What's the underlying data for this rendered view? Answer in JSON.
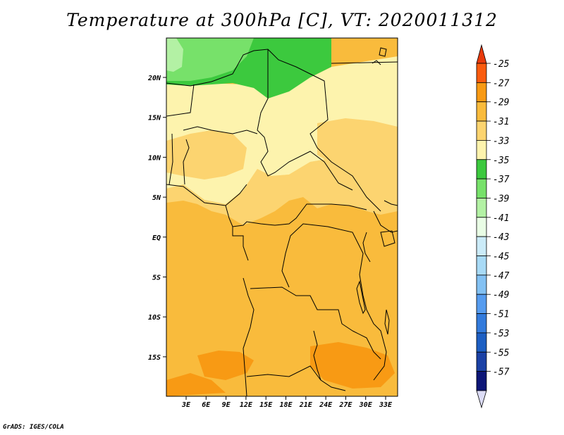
{
  "title": "Temperature at 300hPa [C], VT: 2020011312",
  "footer": "GrADS: IGES/COLA",
  "lat_labels": [
    "20N",
    "15N",
    "10N",
    "5N",
    "EQ",
    "5S",
    "10S",
    "15S"
  ],
  "lon_labels": [
    "3E",
    "6E",
    "9E",
    "12E",
    "15E",
    "18E",
    "21E",
    "24E",
    "27E",
    "30E",
    "33E"
  ],
  "colorbar": {
    "labels": [
      "-25",
      "-27",
      "-29",
      "-31",
      "-33",
      "-35",
      "-37",
      "-39",
      "-41",
      "-43",
      "-45",
      "-47",
      "-49",
      "-51",
      "-53",
      "-55",
      "-57"
    ],
    "colors": [
      "#fa5c0f",
      "#f89a14",
      "#f9bb3c",
      "#fcd470",
      "#fdf3ad",
      "#3cc93e",
      "#77e16a",
      "#b3f1a4",
      "#e9fde5",
      "#cbebf8",
      "#a8daf6",
      "#83c1f3",
      "#569cef",
      "#337bdc",
      "#1d5fc3",
      "#1b41a5",
      "#0d1677"
    ],
    "top_arrow_color": "#e83a0c",
    "bottom_arrow_color": "#dcdcf6"
  },
  "map": {
    "fill_colors": {
      "lightest_yellow": "#fdf3ad",
      "light_orange": "#fcd470",
      "orange": "#f9bb3c",
      "dark_orange": "#f89a14",
      "green": "#3cc93e",
      "light_green": "#77e16a",
      "pale_green": "#b3f1a4"
    }
  }
}
